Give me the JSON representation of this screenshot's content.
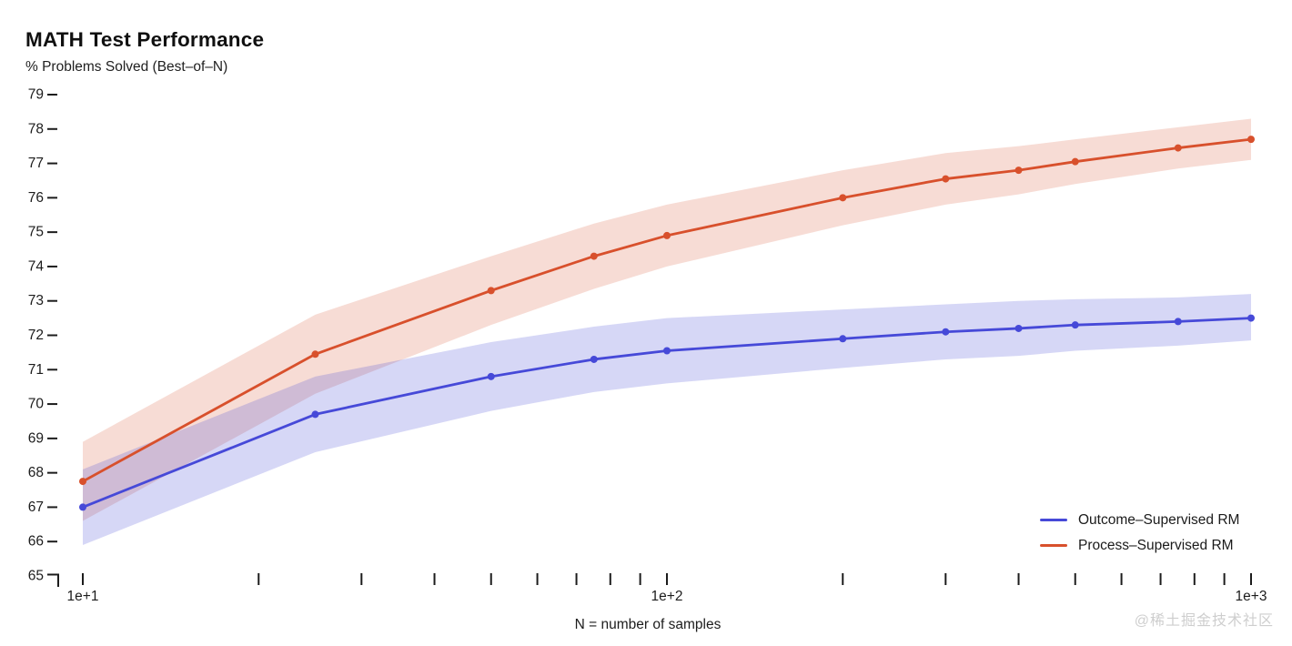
{
  "watermark": "@稀土掘金技术社区",
  "chart_data": {
    "type": "line",
    "title": "MATH Test Performance",
    "subtitle": "% Problems Solved (Best–of–N)",
    "xlabel": "N = number of samples",
    "x_scale": "log",
    "xlim": [
      10,
      1000
    ],
    "ylim": [
      65,
      79
    ],
    "grid": false,
    "legend_position": "bottom-right",
    "x_ticks": [
      10,
      20,
      30,
      40,
      50,
      60,
      70,
      80,
      90,
      100,
      200,
      300,
      400,
      500,
      600,
      700,
      800,
      900,
      1000
    ],
    "x_tick_labels": [
      {
        "value": 10,
        "label": "1e+1"
      },
      {
        "value": 100,
        "label": "1e+2"
      },
      {
        "value": 1000,
        "label": "1e+3"
      }
    ],
    "y_ticks": [
      65,
      66,
      67,
      68,
      69,
      70,
      71,
      72,
      73,
      74,
      75,
      76,
      77,
      78,
      79
    ],
    "x": [
      10,
      25,
      50,
      75,
      100,
      200,
      300,
      400,
      500,
      750,
      1000
    ],
    "series": [
      {
        "name": "Outcome–Supervised RM",
        "color": "#4649d8",
        "band_color": "rgba(70,75,216,0.22)",
        "values": [
          67.0,
          69.7,
          70.8,
          71.3,
          71.55,
          71.9,
          72.1,
          72.2,
          72.3,
          72.4,
          72.5
        ],
        "band_upper": [
          68.1,
          70.8,
          71.8,
          72.25,
          72.5,
          72.75,
          72.9,
          73.0,
          73.05,
          73.1,
          73.2
        ],
        "band_lower": [
          65.9,
          68.6,
          69.8,
          70.35,
          70.6,
          71.05,
          71.3,
          71.4,
          71.55,
          71.7,
          71.85
        ]
      },
      {
        "name": "Process–Supervised RM",
        "color": "#d8502c",
        "band_color": "rgba(216,80,44,0.20)",
        "values": [
          67.75,
          71.45,
          73.3,
          74.3,
          74.9,
          76.0,
          76.55,
          76.8,
          77.05,
          77.45,
          77.7
        ],
        "band_upper": [
          68.9,
          72.6,
          74.3,
          75.25,
          75.8,
          76.8,
          77.3,
          77.5,
          77.7,
          78.05,
          78.3
        ],
        "band_lower": [
          66.6,
          70.3,
          72.3,
          73.35,
          74.0,
          75.2,
          75.8,
          76.1,
          76.4,
          76.85,
          77.1
        ]
      }
    ]
  }
}
